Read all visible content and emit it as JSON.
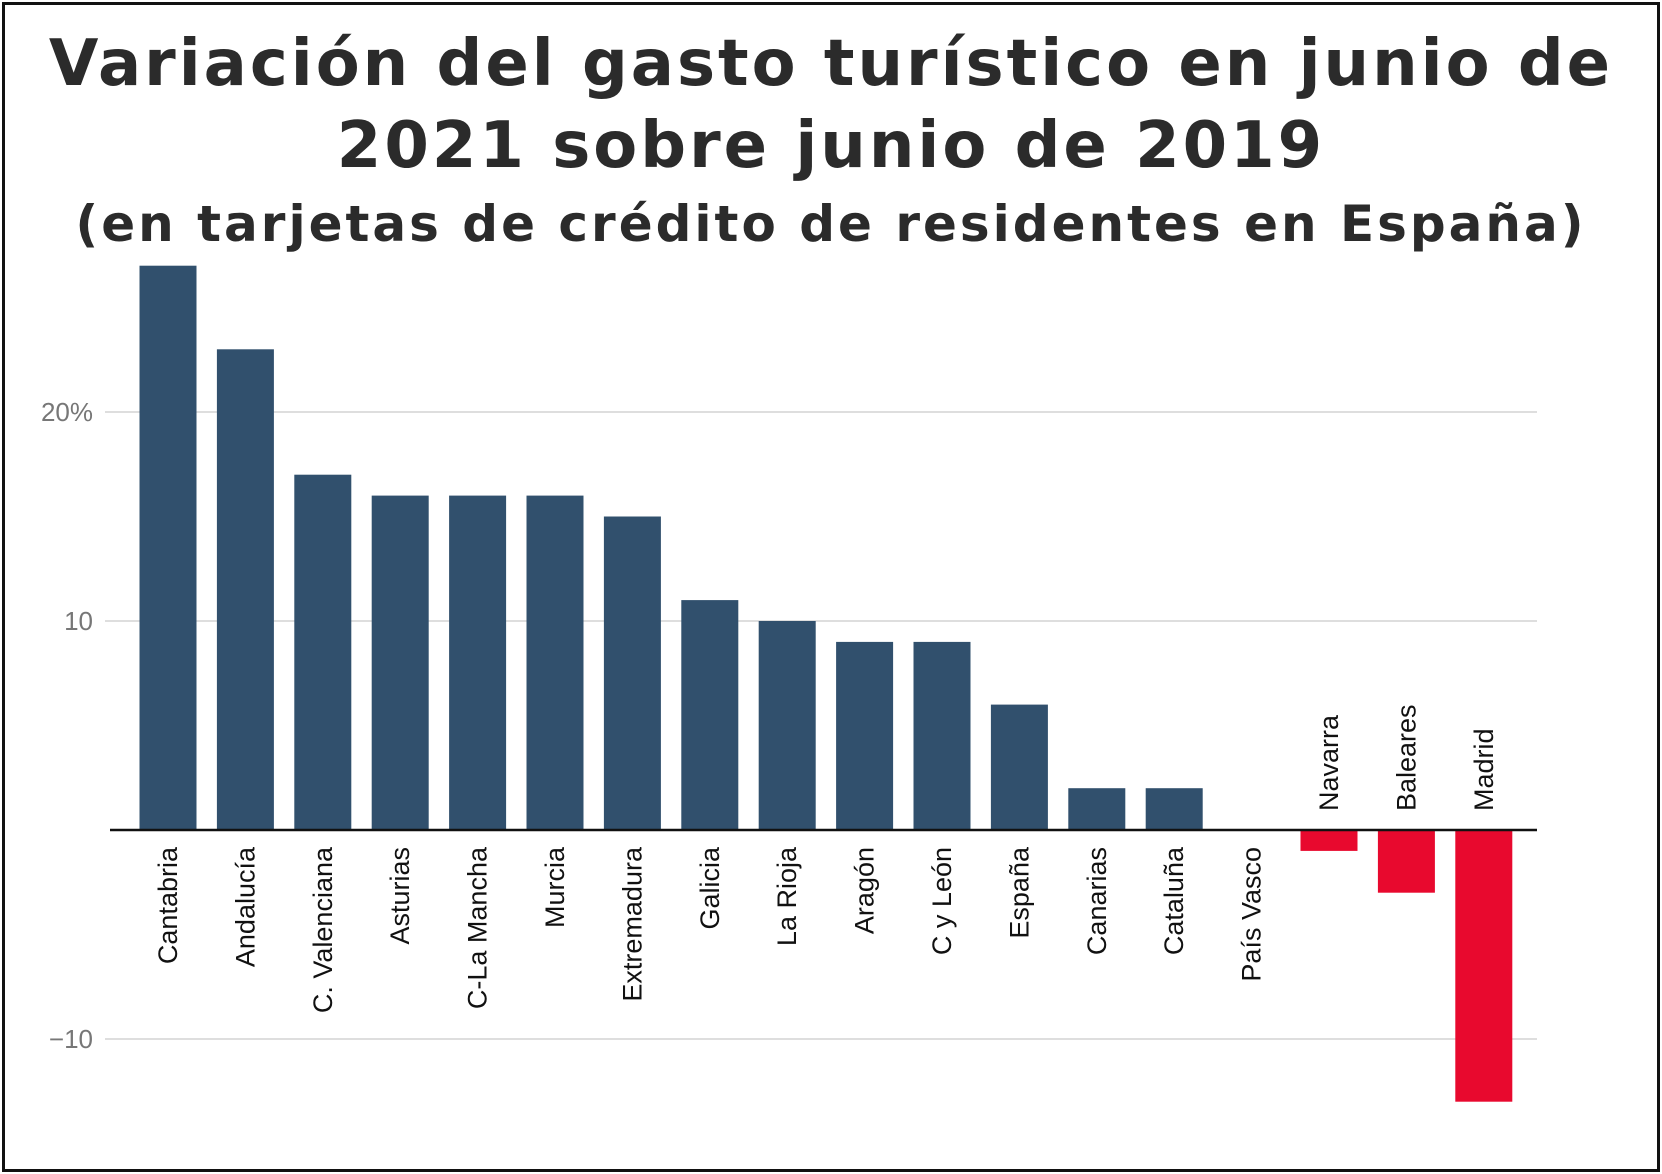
{
  "title": {
    "line1": "Variación del gasto turístico en junio de",
    "line2": "2021 sobre junio de 2019",
    "line3": "(en tarjetas de crédito de residentes en España)"
  },
  "chart_data": {
    "type": "bar",
    "categories": [
      "Cantabria",
      "Andalucía",
      "C. Valenciana",
      "Asturias",
      "C-La Mancha",
      "Murcia",
      "Extremadura",
      "Galicia",
      "La Rioja",
      "Aragón",
      "C y León",
      "España",
      "Canarias",
      "Cataluña",
      "País Vasco",
      "Navarra",
      "Baleares",
      "Madrid"
    ],
    "values": [
      27,
      23,
      17,
      16,
      16,
      16,
      15,
      11,
      10,
      9,
      9,
      6,
      2,
      2,
      0,
      -1,
      -3,
      -13
    ],
    "ylim": [
      -13,
      28
    ],
    "yticks": [
      {
        "value": 20,
        "label": "20%"
      },
      {
        "value": 10,
        "label": "10"
      },
      {
        "value": -10,
        "label": "−10"
      }
    ],
    "grid": true,
    "colors": {
      "positive": "#31506d",
      "negative": "#e8092e",
      "grid": "#dedede",
      "axis": "#111111"
    }
  }
}
